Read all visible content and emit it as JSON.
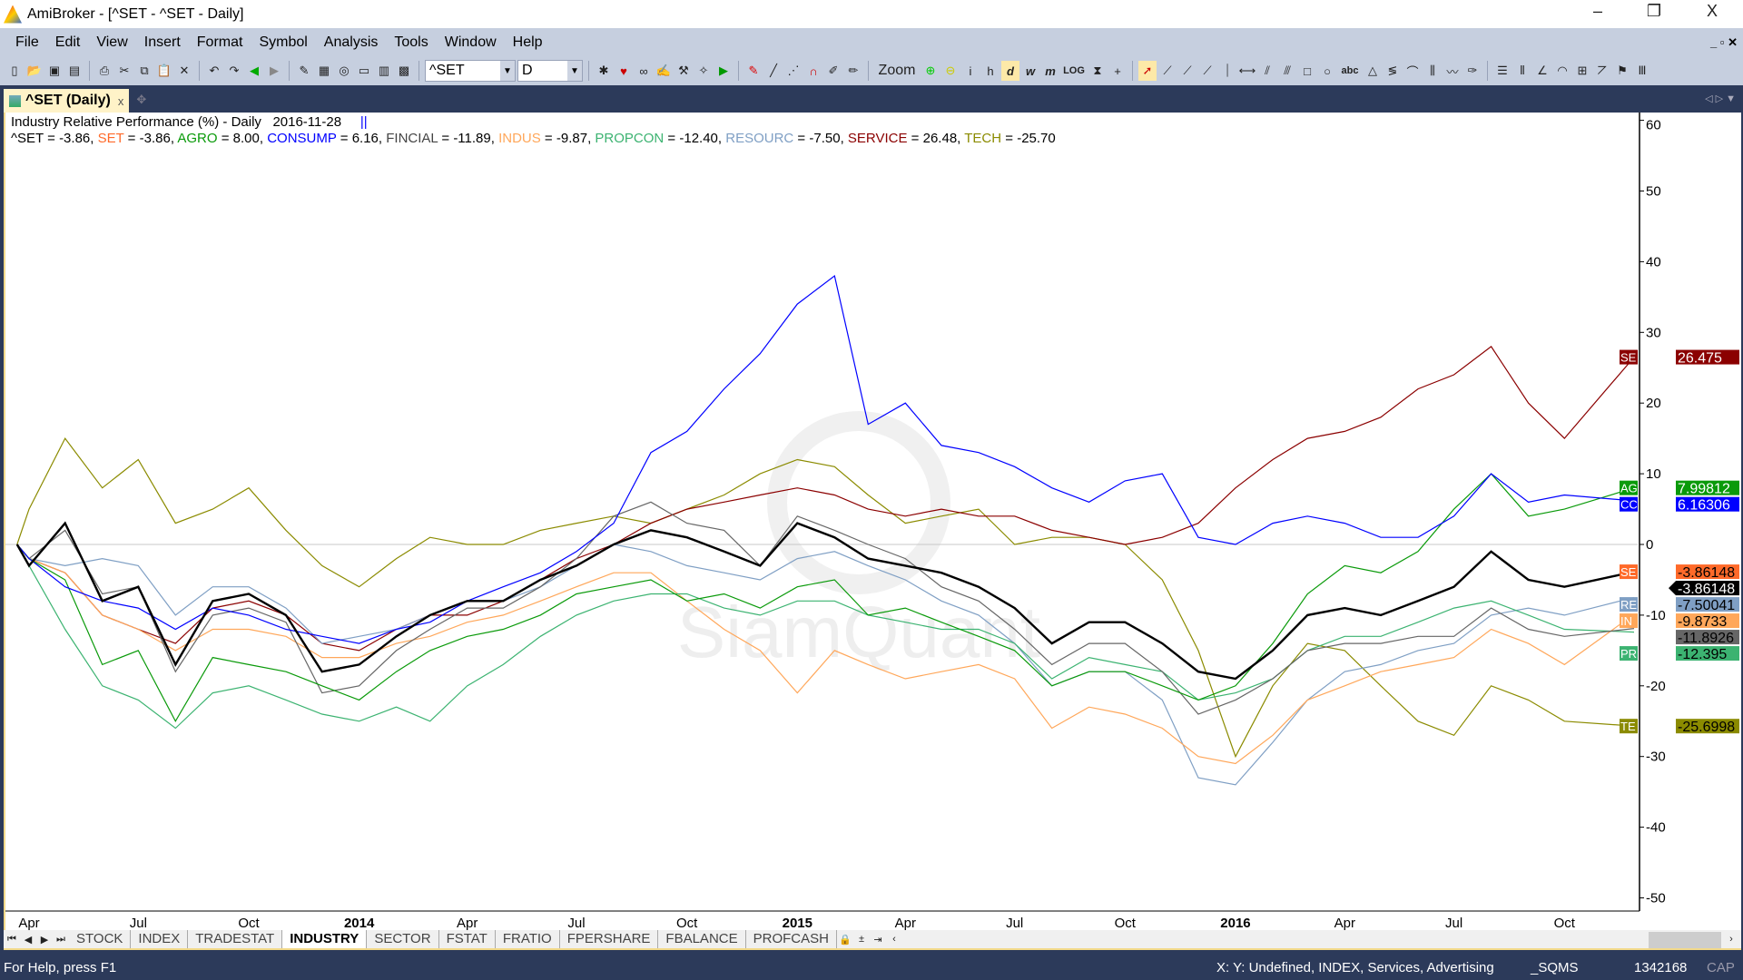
{
  "window": {
    "title": "AmiBroker - [^SET - ^SET - Daily]",
    "minimize": "–",
    "restore": "❐",
    "close": "X"
  },
  "menu": [
    "File",
    "Edit",
    "View",
    "Insert",
    "Format",
    "Symbol",
    "Analysis",
    "Tools",
    "Window",
    "Help"
  ],
  "toolbar": {
    "symbol": "^SET",
    "interval": "D",
    "zoom_label": "Zoom",
    "log_label": "LOG",
    "text_tool": "abc"
  },
  "doc_tab": {
    "label": "^SET (Daily)",
    "close": "x"
  },
  "chart_header": {
    "title": "Industry Relative Performance (%) - Daily",
    "date": "2016-11-28",
    "marker": "||"
  },
  "colors": {
    "accent_tab": "#fff3c8",
    "frame": "#2c3a5a",
    "toolbar": "#c6cfdf"
  },
  "sheet_tabs": [
    "STOCK",
    "INDEX",
    "TRADESTAT",
    "INDUSTRY",
    "SECTOR",
    "FSTAT",
    "FRATIO",
    "FPERSHARE",
    "FBALANCE",
    "PROFCASH"
  ],
  "active_sheet": "INDUSTRY",
  "status": {
    "help": "For Help, press F1",
    "info": "X: Y: Undefined, INDEX, Services, Advertising",
    "db": "_SQMS",
    "count": "1342168",
    "cap": "CAP"
  },
  "chart_data": {
    "type": "line",
    "ylim": [
      -55,
      62
    ],
    "yticks": [
      -50,
      -40,
      -30,
      -20,
      -10,
      0,
      10,
      20,
      30,
      40,
      50,
      60
    ],
    "xtick_labels": [
      {
        "date": "2013-04-01",
        "label": "Apr"
      },
      {
        "date": "2013-07-01",
        "label": "Jul"
      },
      {
        "date": "2013-10-01",
        "label": "Oct"
      },
      {
        "date": "2014-01-01",
        "label": "2014",
        "bold": true
      },
      {
        "date": "2014-04-01",
        "label": "Apr"
      },
      {
        "date": "2014-07-01",
        "label": "Jul"
      },
      {
        "date": "2014-10-01",
        "label": "Oct"
      },
      {
        "date": "2015-01-01",
        "label": "2015",
        "bold": true
      },
      {
        "date": "2015-04-01",
        "label": "Apr"
      },
      {
        "date": "2015-07-01",
        "label": "Jul"
      },
      {
        "date": "2015-10-01",
        "label": "Oct"
      },
      {
        "date": "2016-01-01",
        "label": "2016",
        "bold": true
      },
      {
        "date": "2016-04-01",
        "label": "Apr"
      },
      {
        "date": "2016-07-01",
        "label": "Jul"
      },
      {
        "date": "2016-10-01",
        "label": "Oct"
      }
    ],
    "x": [
      "2013-03-22",
      "2013-04-01",
      "2013-05-01",
      "2013-06-01",
      "2013-07-01",
      "2013-08-01",
      "2013-09-01",
      "2013-10-01",
      "2013-11-01",
      "2013-12-01",
      "2014-01-01",
      "2014-02-01",
      "2014-03-01",
      "2014-04-01",
      "2014-05-01",
      "2014-06-01",
      "2014-07-01",
      "2014-08-01",
      "2014-09-01",
      "2014-10-01",
      "2014-11-01",
      "2014-12-01",
      "2015-01-01",
      "2015-02-01",
      "2015-03-01",
      "2015-04-01",
      "2015-05-01",
      "2015-06-01",
      "2015-07-01",
      "2015-08-01",
      "2015-09-01",
      "2015-10-01",
      "2015-11-01",
      "2015-12-01",
      "2016-01-01",
      "2016-02-01",
      "2016-03-01",
      "2016-04-01",
      "2016-05-01",
      "2016-06-01",
      "2016-07-01",
      "2016-08-01",
      "2016-09-01",
      "2016-10-01",
      "2016-11-28"
    ],
    "series": [
      {
        "name": "TECH",
        "color": "#8b8b00",
        "tag": "TE",
        "last": "-25.6998",
        "legend": "-25.70",
        "values": [
          0,
          5,
          15,
          8,
          12,
          3,
          5,
          8,
          2,
          -3,
          -6,
          -2,
          1,
          0,
          0,
          2,
          3,
          4,
          3,
          5,
          7,
          10,
          12,
          11,
          7,
          3,
          4,
          5,
          0,
          1,
          1,
          0,
          -5,
          -15,
          -30,
          -20,
          -14,
          -15,
          -20,
          -25,
          -27,
          -20,
          -22,
          -25,
          -25.7
        ]
      },
      {
        "name": "SERVICE",
        "color": "#8b0000",
        "tag": "SE",
        "last": "26.475",
        "legend": "26.48",
        "values": [
          0,
          -2,
          -4,
          -10,
          -12,
          -14,
          -9,
          -8,
          -10,
          -14,
          -15,
          -12,
          -10,
          -10,
          -8,
          -5,
          -2,
          0,
          3,
          5,
          6,
          7,
          8,
          7,
          5,
          4,
          5,
          4,
          4,
          2,
          1,
          0,
          1,
          3,
          8,
          12,
          15,
          16,
          18,
          22,
          24,
          28,
          20,
          15,
          26.5
        ]
      },
      {
        "name": "RESOURC",
        "color": "#7f9fc4",
        "tag": "RE",
        "last": "-7.50041",
        "legend": "-7.50",
        "values": [
          0,
          -2,
          -3,
          -2,
          -3,
          -10,
          -6,
          -6,
          -9,
          -14,
          -13,
          -12,
          -10,
          -8,
          -8,
          -6,
          -3,
          0,
          -1,
          -3,
          -4,
          -5,
          -2,
          -1,
          -3,
          -5,
          -8,
          -10,
          -14,
          -20,
          -18,
          -18,
          -22,
          -33,
          -34,
          -28,
          -22,
          -18,
          -17,
          -15,
          -14,
          -10,
          -9,
          -10,
          -7.5
        ]
      },
      {
        "name": "INDUS",
        "color": "#ffa75a",
        "tag": "IND",
        "last": "-9.8733",
        "legend": "-9.87",
        "values": [
          0,
          -2,
          -4,
          -10,
          -12,
          -15,
          -12,
          -12,
          -13,
          -16,
          -16,
          -14,
          -13,
          -11,
          -10,
          -8,
          -6,
          -4,
          -4,
          -8,
          -12,
          -15,
          -21,
          -15,
          -17,
          -19,
          -18,
          -17,
          -19,
          -26,
          -23,
          -24,
          -26,
          -30,
          -31,
          -27,
          -22,
          -20,
          -18,
          -17,
          -16,
          -12,
          -14,
          -17,
          -9.87
        ]
      },
      {
        "name": "PROPCON",
        "color": "#3cb371",
        "tag": "PR",
        "last": "-12.395",
        "legend": "-12.40",
        "values": [
          0,
          -3,
          -12,
          -20,
          -22,
          -26,
          -21,
          -20,
          -22,
          -24,
          -25,
          -23,
          -25,
          -20,
          -17,
          -13,
          -10,
          -8,
          -7,
          -7,
          -9,
          -10,
          -8,
          -8,
          -10,
          -11,
          -12,
          -12,
          -14,
          -19,
          -16,
          -17,
          -18,
          -22,
          -21,
          -19,
          -15,
          -13,
          -13,
          -11,
          -9,
          -8,
          -10,
          -12,
          -12.4
        ]
      },
      {
        "name": "FINCIAL",
        "color": "#666666",
        "tag": "",
        "last": "-11.8926",
        "legend": "-11.89",
        "values": [
          0,
          -2,
          2,
          -7,
          -6,
          -18,
          -10,
          -9,
          -11,
          -21,
          -20,
          -15,
          -12,
          -9,
          -9,
          -6,
          -2,
          4,
          6,
          3,
          2,
          -3,
          4,
          2,
          0,
          -2,
          -6,
          -8,
          -12,
          -17,
          -14,
          -14,
          -18,
          -24,
          -22,
          -19,
          -15,
          -14,
          -14,
          -13,
          -13,
          -9,
          -12,
          -13,
          -11.89
        ]
      },
      {
        "name": "AGRO",
        "color": "#0a9a0a",
        "tag": "AG",
        "last": "7.99812",
        "legend": "8.00",
        "values": [
          0,
          -2,
          -5,
          -17,
          -15,
          -25,
          -16,
          -17,
          -18,
          -20,
          -22,
          -18,
          -15,
          -13,
          -12,
          -10,
          -7,
          -6,
          -5,
          -8,
          -7,
          -9,
          -6,
          -5,
          -10,
          -9,
          -11,
          -13,
          -15,
          -20,
          -18,
          -18,
          -20,
          -22,
          -20,
          -14,
          -7,
          -3,
          -4,
          -1,
          5,
          10,
          4,
          5,
          8
        ]
      },
      {
        "name": "CONSUMP",
        "color": "#0000ff",
        "tag": "CC",
        "last": "6.16306",
        "legend": "6.16",
        "values": [
          0,
          -2,
          -6,
          -8,
          -9,
          -12,
          -9,
          -10,
          -12,
          -13,
          -14,
          -12,
          -11,
          -8,
          -6,
          -4,
          -1,
          3,
          13,
          16,
          22,
          27,
          34,
          38,
          17,
          20,
          14,
          13,
          11,
          8,
          6,
          9,
          10,
          1,
          0,
          3,
          4,
          3,
          1,
          1,
          4,
          10,
          6,
          7,
          6.16
        ]
      },
      {
        "name": "SET",
        "color": "#ff6a2a",
        "tag": "SE",
        "last": "-3.86148",
        "legend": "-3.86",
        "values": [
          0,
          -3,
          3,
          -8,
          -6,
          -17,
          -8,
          -7,
          -10,
          -18,
          -17,
          -13,
          -10,
          -8,
          -8,
          -5,
          -3,
          0,
          2,
          1,
          -1,
          -3,
          3,
          1,
          -2,
          -3,
          -4,
          -6,
          -9,
          -14,
          -11,
          -11,
          -14,
          -18,
          -19,
          -15,
          -10,
          -9,
          -10,
          -8,
          -6,
          -1,
          -5,
          -6,
          -3.86
        ]
      },
      {
        "name": "^SET",
        "color": "#000000",
        "tag": "",
        "last": "-3.86148",
        "legend": "-3.86",
        "values": [
          0,
          -3,
          3,
          -8,
          -6,
          -17,
          -8,
          -7,
          -10,
          -18,
          -17,
          -13,
          -10,
          -8,
          -8,
          -5,
          -3,
          0,
          2,
          1,
          -1,
          -3,
          3,
          1,
          -2,
          -3,
          -4,
          -6,
          -9,
          -14,
          -11,
          -11,
          -14,
          -18,
          -19,
          -15,
          -10,
          -9,
          -10,
          -8,
          -6,
          -1,
          -5,
          -6,
          -3.86
        ]
      }
    ],
    "legend_order": [
      "^SET",
      "SET",
      "AGRO",
      "CONSUMP",
      "FINCIAL",
      "INDUS",
      "PROPCON",
      "RESOURC",
      "SERVICE",
      "TECH"
    ],
    "grid": false,
    "zero_line": true,
    "watermark": "SiamQuant"
  }
}
